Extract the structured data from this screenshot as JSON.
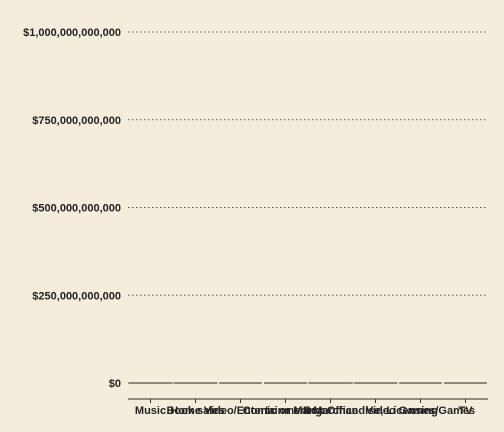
{
  "chart_data": {
    "type": "bar",
    "title": "",
    "xlabel": "",
    "ylabel": "",
    "categories": [
      "Music",
      "Book sales",
      "Home Video/Entertainment",
      "Comic or Manga",
      "Box Office",
      "Merchandise, Licensing",
      "Video Games/Games",
      "TV"
    ],
    "values": [
      0,
      0,
      0,
      0,
      0,
      0,
      0,
      0
    ],
    "ylim": [
      0,
      1000000000000
    ],
    "yticks": [
      0,
      250000000000,
      500000000000,
      750000000000,
      1000000000000
    ],
    "ytick_labels": [
      "$0",
      "$250,000,000,000",
      "$500,000,000,000",
      "$750,000,000,000",
      "$1,000,000,000,000"
    ],
    "grid": "horizontal dotted",
    "colors": {
      "background": "#f5eddc",
      "bar": "#222222",
      "grid": "#555555",
      "axis": "#333333"
    }
  }
}
